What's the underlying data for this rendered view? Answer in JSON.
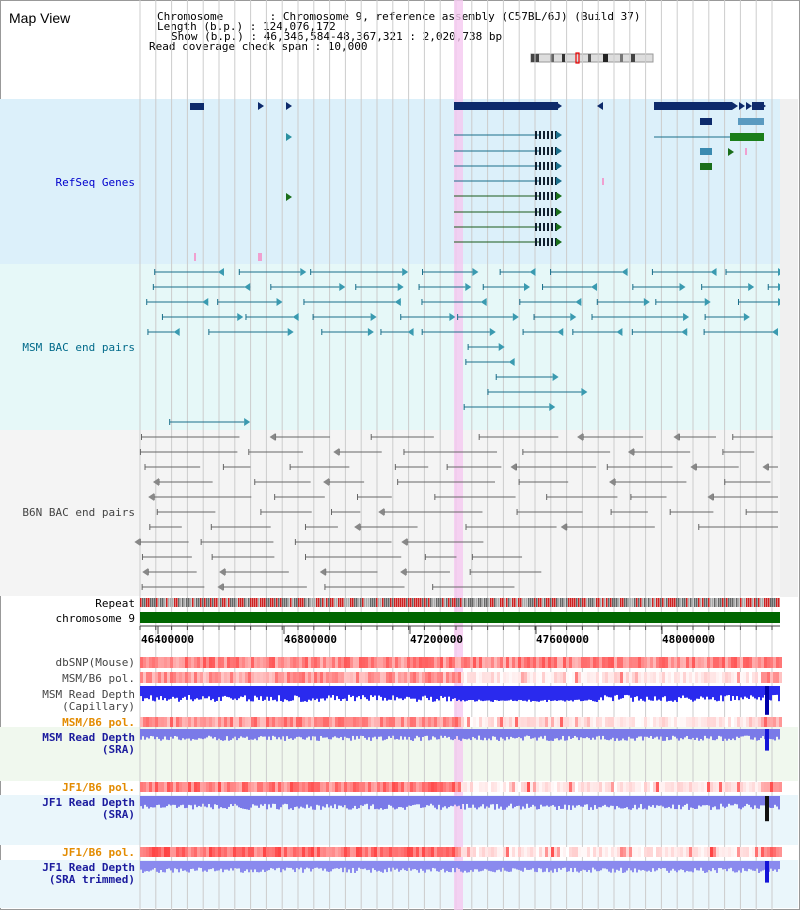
{
  "window": {
    "title": "Map View"
  },
  "info": {
    "chromosome_line": "Chromosome       : Chromosome 9, reference assembly (C57BL/6J) (Build 37)",
    "length_line": "Length (b.p.) : 124,076,172",
    "show_line": "Show (b.p.) : 46,346,584-48,367,321 : 2,020,738 bp",
    "span_line": "Read coverage check span : 10,000"
  },
  "tracks": {
    "refseq": "RefSeq Genes",
    "msm_bac": "MSM BAC end pairs",
    "b6n_bac": "B6N BAC end pairs",
    "repeat": "Repeat",
    "chromosome": "chromosome 9",
    "dbsnp": "dbSNP(Mouse)",
    "msm_b6_pol": "MSM/B6 pol.",
    "msm_read_depth_cap_1": "MSM Read Depth",
    "msm_read_depth_cap_2": "(Capillary)",
    "msm_b6_pol_2": "MSM/B6 pol.",
    "msm_read_depth_sra_1": "MSM Read Depth",
    "msm_read_depth_sra_2": "(SRA)",
    "jf1_b6_pol": "JF1/B6 pol.",
    "jf1_read_depth_1": "JF1 Read Depth",
    "jf1_read_depth_2": "(SRA)",
    "jf1_b6_pol_2": "JF1/B6 pol.",
    "jf1_read_depth_trim_1": "JF1 Read Depth",
    "jf1_read_depth_trim_2": "(SRA trimmed)"
  },
  "axis": {
    "ticks": [
      "46400000",
      "46800000",
      "47200000",
      "47600000",
      "48000000"
    ]
  },
  "colors": {
    "refseq_bg": "#dcf0fa",
    "msm_bg": "#e6f8f8",
    "b6n_bg": "#f4f4f4",
    "highlight": "#f5c8f0",
    "chromosome": "#006600"
  }
}
